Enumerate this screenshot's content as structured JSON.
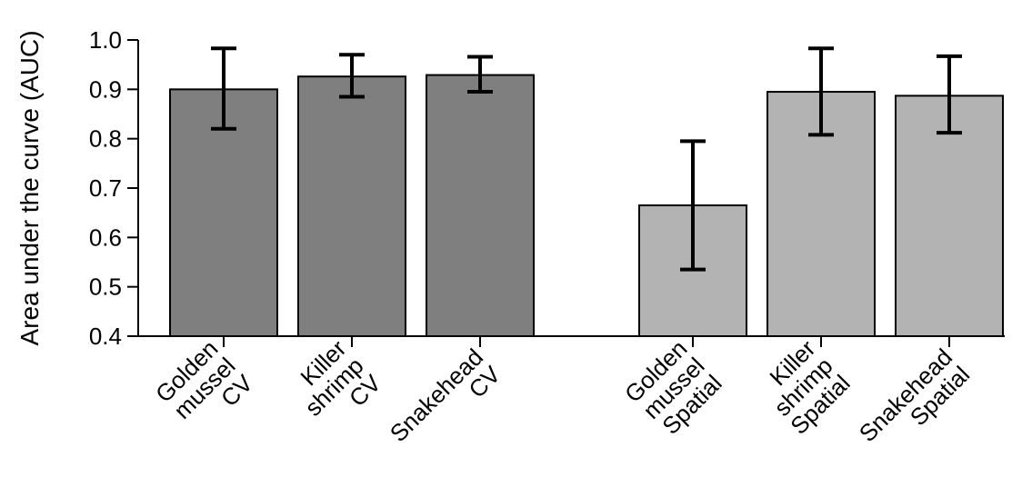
{
  "chart_data": {
    "type": "bar",
    "title": "",
    "xlabel": "",
    "ylabel": "Area under the curve (AUC)",
    "ylim": [
      0.4,
      1.0
    ],
    "yticks": [
      "0.4",
      "0.5",
      "0.6",
      "0.7",
      "0.8",
      "0.9",
      "1.0"
    ],
    "grid": false,
    "bars": [
      {
        "label": [
          "Golden",
          "mussel",
          "CV"
        ],
        "value": 0.9,
        "err_low": 0.82,
        "err_high": 0.983,
        "group": "CV"
      },
      {
        "label": [
          "Killer",
          "shrimp",
          "CV"
        ],
        "value": 0.926,
        "err_low": 0.885,
        "err_high": 0.97,
        "group": "CV"
      },
      {
        "label": [
          "Snakehead",
          "CV"
        ],
        "value": 0.929,
        "err_low": 0.895,
        "err_high": 0.966,
        "group": "CV"
      },
      {
        "label": [
          "Golden",
          "mussel",
          "Spatial"
        ],
        "value": 0.665,
        "err_low": 0.535,
        "err_high": 0.795,
        "group": "Spatial"
      },
      {
        "label": [
          "Killer",
          "shrimp",
          "Spatial"
        ],
        "value": 0.895,
        "err_low": 0.808,
        "err_high": 0.983,
        "group": "Spatial"
      },
      {
        "label": [
          "Snakehead",
          "Spatial"
        ],
        "value": 0.887,
        "err_low": 0.812,
        "err_high": 0.967,
        "group": "Spatial"
      }
    ],
    "colors": {
      "CV": "#7f7f7f",
      "Spatial": "#b3b3b3",
      "outline": "#000000",
      "error_bar": "#000000"
    }
  }
}
